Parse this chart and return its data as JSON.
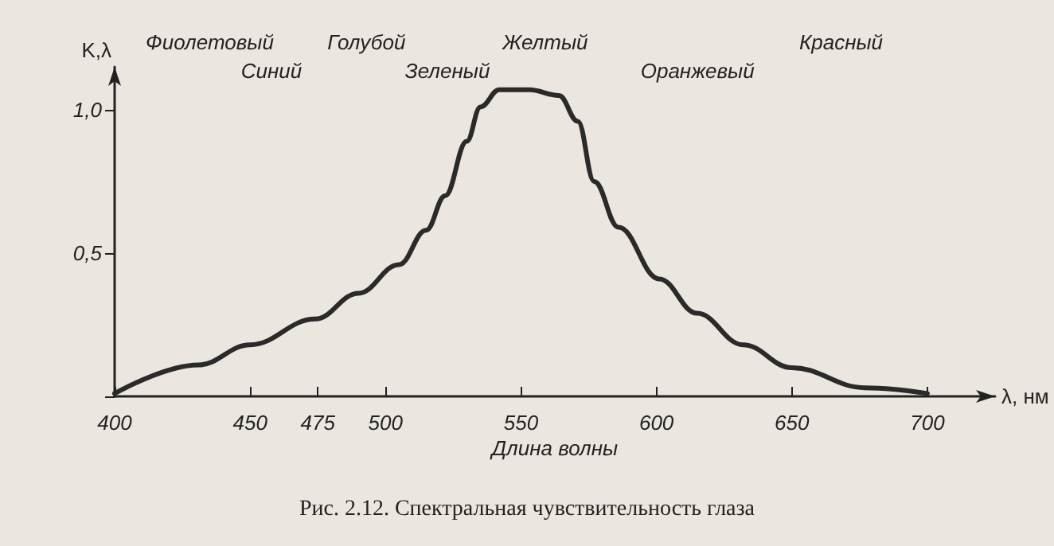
{
  "chart_data": {
    "type": "line",
    "title": "Рис. 2.12. Спектральная чувствительность глаза",
    "xlabel": "λ, нм",
    "ylabel": "K,λ",
    "annotations": [
      "Длина волны",
      "Фиолетовый",
      "Синий",
      "Голубой",
      "Зеленый",
      "Желтый",
      "Оранжевый",
      "Красный"
    ],
    "series": [
      {
        "color": "#2a2a2a",
        "x": [
          400,
          431,
          450,
          474,
          490,
          505,
          515,
          522,
          530,
          535,
          542,
          553,
          564,
          571,
          577,
          586,
          601,
          615,
          632,
          650,
          677,
          700
        ],
        "values": [
          0.01,
          0.11,
          0.18,
          0.27,
          0.36,
          0.46,
          0.58,
          0.7,
          0.89,
          1.01,
          1.07,
          1.07,
          1.05,
          0.96,
          0.75,
          0.59,
          0.41,
          0.29,
          0.18,
          0.1,
          0.03,
          0.01
        ]
      }
    ],
    "xlim": [
      400,
      725
    ],
    "xticks": [
      400,
      450,
      475,
      500,
      550,
      600,
      650,
      700
    ],
    "ylim": [
      0,
      1.15
    ],
    "yticks": [
      {
        "value": 0,
        "label": null
      },
      {
        "value": 0.5,
        "label": "0,5"
      },
      {
        "value": 1.0,
        "label": "1,0"
      }
    ],
    "grid": false,
    "marker": "none",
    "line_style": "solid"
  }
}
